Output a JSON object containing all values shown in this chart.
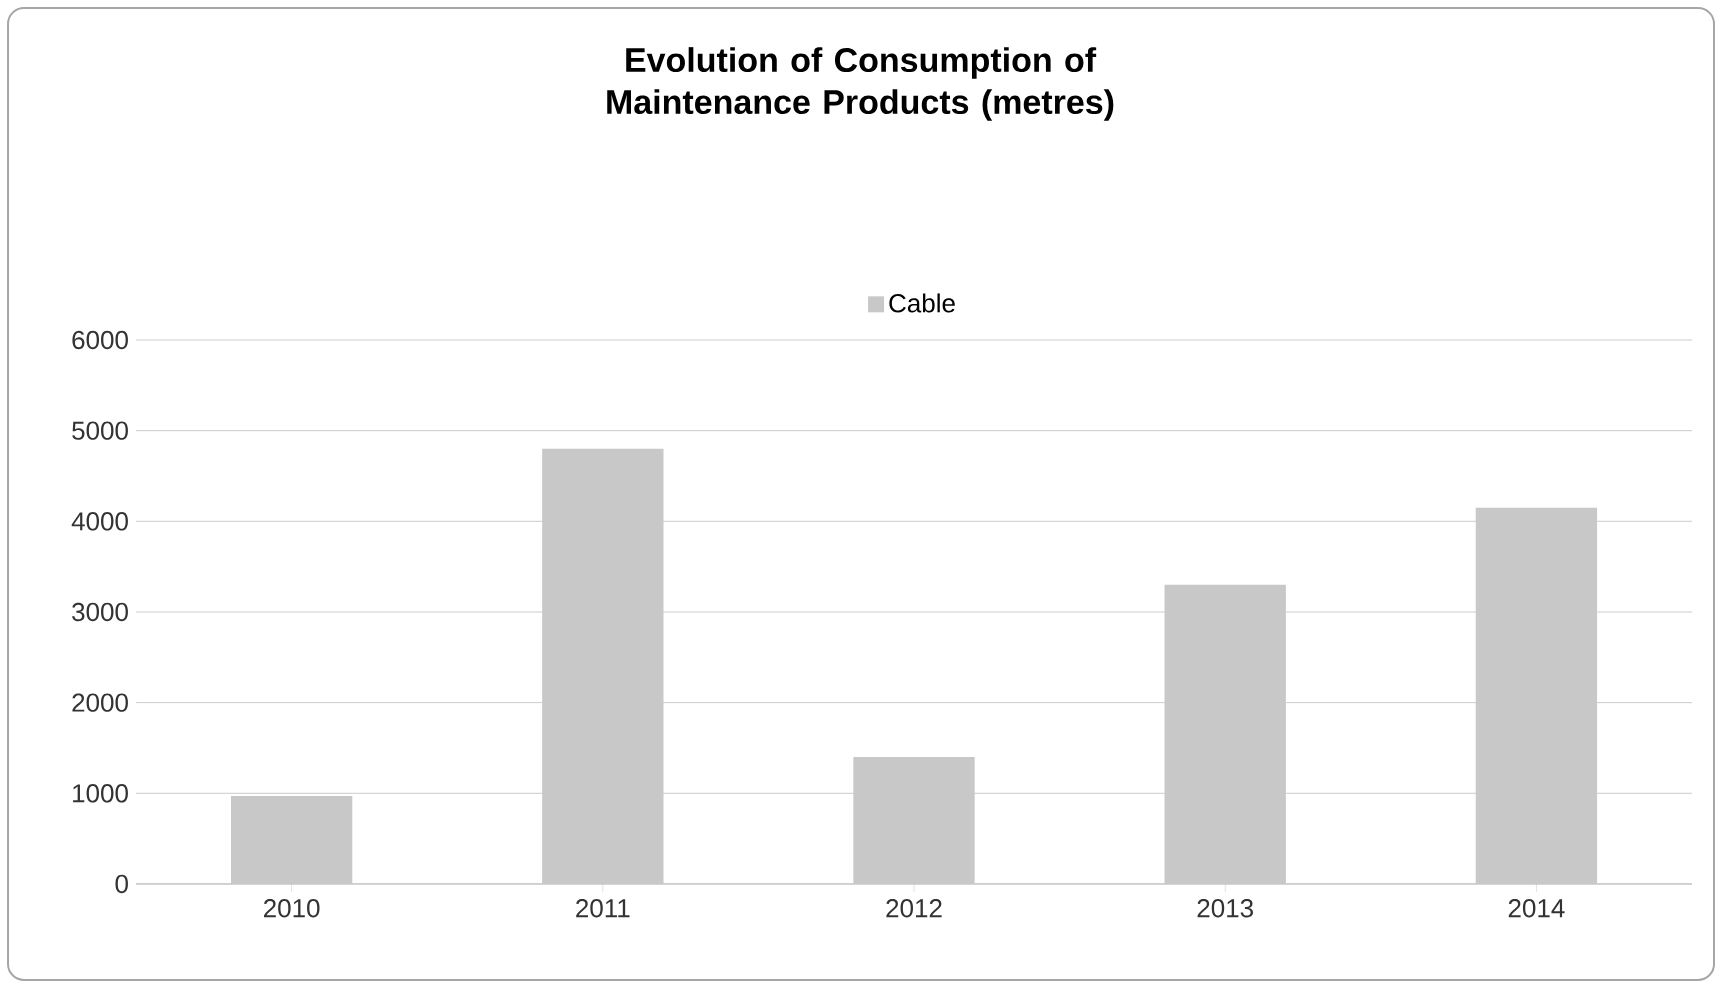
{
  "chart_data": {
    "type": "bar",
    "title": "Evolution of Consumption of Maintenance Products (metres)",
    "categories": [
      "2010",
      "2011",
      "2012",
      "2013",
      "2014"
    ],
    "series": [
      {
        "name": "Cable",
        "color": "#c8c8c8",
        "values": [
          970,
          4800,
          1400,
          3300,
          4150
        ]
      }
    ],
    "ylim": [
      0,
      6000
    ],
    "yticks": [
      0,
      1000,
      2000,
      3000,
      4000,
      5000,
      6000
    ],
    "grid": "y",
    "legend": "top"
  }
}
